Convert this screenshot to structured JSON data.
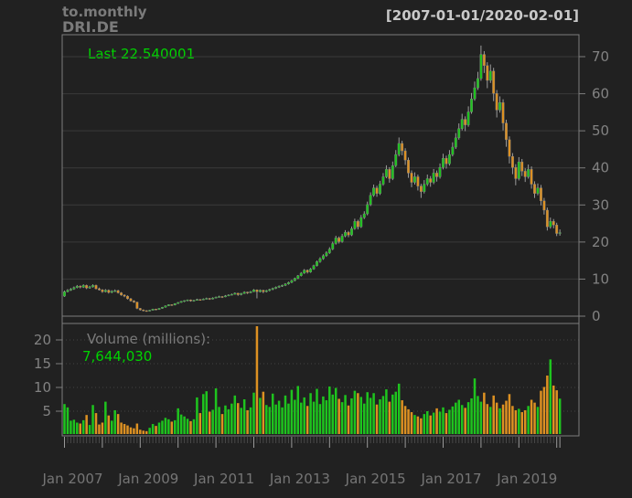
{
  "header": {
    "function_label": "to.monthly",
    "symbol": "DRI.DE",
    "range_label": "[2007-01-01/2020-02-01]"
  },
  "price_panel": {
    "last_label": "Last 22.540001"
  },
  "volume_panel": {
    "label": "Volume (millions):",
    "value": "7,644,030"
  },
  "colors": {
    "background": "#212121",
    "up": "#1ec41e",
    "down": "#dd9122",
    "wick": "#a8a8a8",
    "body_outline": "#8a8a8a",
    "grid_solid": "#3a3a3a",
    "grid_dashed": "#424242",
    "panel_border": "#7d7d7d",
    "zero_line": "#7d7d7d",
    "axis_text": "#828282",
    "x_label_text": "#757575",
    "minor_tick": "#494949",
    "major_tick": "#9a9a9a",
    "accent_green_text": "#00d300",
    "title_gray": "#7b7b7b",
    "range_white": "#c9c9c9"
  },
  "chart_data": {
    "type": "candlestick_with_volume",
    "title": "to.monthly",
    "symbol": "DRI.DE",
    "period": "monthly",
    "start": "2007-01",
    "end": "2020-02",
    "last_price": 22.540001,
    "last_volume": 7644030,
    "volume_unit": "millions",
    "price_axis": {
      "side": "right",
      "ticks": [
        0,
        10,
        20,
        30,
        40,
        50,
        60,
        70
      ],
      "ylim": [
        0,
        75
      ]
    },
    "volume_axis": {
      "side": "left",
      "ticks": [
        5,
        10,
        15,
        20
      ],
      "vlim": [
        0,
        23.5
      ]
    },
    "x_axis": {
      "labels": [
        {
          "text": "Jan 2007",
          "month_index": 0
        },
        {
          "text": "Jan 2009",
          "month_index": 24
        },
        {
          "text": "Jan 2011",
          "month_index": 48
        },
        {
          "text": "Jan 2013",
          "month_index": 72
        },
        {
          "text": "Jan 2015",
          "month_index": 96
        },
        {
          "text": "Jan 2017",
          "month_index": 120
        },
        {
          "text": "Jan 2019",
          "month_index": 144
        }
      ],
      "minor_tick_every_month": true,
      "major_tick_every_january": true
    },
    "ohlcv_columns": [
      "open",
      "high",
      "low",
      "close",
      "volume_millions"
    ],
    "ohlcv": [
      [
        5.4,
        6.9,
        5.2,
        6.6,
        6.5
      ],
      [
        6.6,
        7.3,
        6.4,
        7.0,
        5.8
      ],
      [
        7.0,
        7.6,
        6.8,
        7.3,
        3.0
      ],
      [
        7.3,
        8.0,
        7.1,
        7.7,
        3.2
      ],
      [
        7.7,
        8.4,
        7.5,
        8.1,
        2.6
      ],
      [
        8.1,
        8.3,
        7.5,
        7.8,
        2.4
      ],
      [
        7.8,
        8.6,
        7.6,
        8.3,
        3.1
      ],
      [
        8.3,
        8.5,
        7.3,
        7.6,
        4.2
      ],
      [
        7.6,
        8.2,
        7.4,
        7.9,
        2.1
      ],
      [
        7.9,
        8.6,
        7.7,
        8.3,
        6.3
      ],
      [
        8.3,
        8.5,
        7.2,
        7.4,
        4.6
      ],
      [
        7.4,
        7.7,
        6.9,
        7.1,
        2.2
      ],
      [
        7.1,
        7.3,
        6.3,
        6.6,
        2.6
      ],
      [
        6.6,
        7.3,
        6.4,
        7.0,
        7.0
      ],
      [
        7.0,
        7.2,
        6.1,
        6.4,
        4.1
      ],
      [
        6.4,
        7.0,
        6.2,
        6.7,
        3.0
      ],
      [
        6.7,
        7.2,
        6.5,
        6.9,
        5.2
      ],
      [
        6.9,
        7.1,
        6.1,
        6.3,
        4.4
      ],
      [
        6.3,
        6.5,
        5.5,
        5.7,
        2.6
      ],
      [
        5.7,
        5.9,
        5.1,
        5.4,
        2.3
      ],
      [
        5.4,
        5.6,
        4.5,
        4.7,
        2.0
      ],
      [
        4.7,
        4.9,
        3.9,
        4.1,
        1.6
      ],
      [
        4.1,
        4.3,
        3.6,
        3.8,
        1.4
      ],
      [
        3.8,
        3.9,
        1.9,
        2.1,
        2.4
      ],
      [
        2.1,
        2.2,
        1.5,
        1.7,
        1.1
      ],
      [
        1.7,
        1.8,
        1.3,
        1.5,
        0.9
      ],
      [
        1.5,
        1.6,
        1.2,
        1.4,
        0.8
      ],
      [
        1.4,
        1.7,
        1.3,
        1.6,
        1.5
      ],
      [
        1.6,
        2.0,
        1.5,
        1.9,
        2.3
      ],
      [
        1.9,
        2.0,
        1.6,
        1.8,
        1.9
      ],
      [
        1.8,
        2.2,
        1.7,
        2.1,
        2.6
      ],
      [
        2.1,
        2.5,
        2.0,
        2.4,
        3.0
      ],
      [
        2.4,
        2.9,
        2.3,
        2.8,
        3.6
      ],
      [
        2.8,
        3.2,
        2.7,
        3.1,
        3.3
      ],
      [
        3.1,
        3.2,
        2.8,
        3.0,
        2.8
      ],
      [
        3.0,
        3.5,
        2.9,
        3.4,
        3.1
      ],
      [
        3.4,
        3.8,
        3.3,
        3.7,
        5.6
      ],
      [
        3.7,
        4.1,
        3.6,
        4.0,
        4.3
      ],
      [
        4.0,
        4.3,
        3.8,
        4.2,
        3.9
      ],
      [
        4.2,
        4.5,
        4.0,
        4.4,
        3.4
      ],
      [
        4.4,
        4.5,
        3.9,
        4.1,
        2.9
      ],
      [
        4.1,
        4.4,
        3.9,
        4.3,
        3.3
      ],
      [
        4.3,
        4.7,
        4.2,
        4.5,
        7.9
      ],
      [
        4.5,
        4.6,
        4.2,
        4.4,
        4.6
      ],
      [
        4.4,
        4.8,
        4.3,
        4.6,
        8.6
      ],
      [
        4.6,
        5.0,
        4.5,
        4.8,
        9.2
      ],
      [
        4.8,
        4.9,
        4.4,
        4.6,
        4.9
      ],
      [
        4.6,
        5.1,
        4.5,
        4.9,
        5.3
      ],
      [
        4.9,
        5.3,
        4.8,
        5.1,
        9.8
      ],
      [
        5.1,
        5.5,
        5.0,
        5.3,
        5.9
      ],
      [
        5.3,
        5.4,
        4.9,
        5.2,
        4.4
      ],
      [
        5.2,
        5.7,
        5.1,
        5.5,
        6.2
      ],
      [
        5.5,
        5.9,
        5.4,
        5.7,
        5.4
      ],
      [
        5.7,
        6.1,
        5.6,
        5.9,
        6.6
      ],
      [
        5.9,
        6.4,
        5.8,
        6.2,
        8.3
      ],
      [
        6.2,
        6.3,
        5.5,
        5.8,
        6.7
      ],
      [
        5.8,
        6.3,
        5.6,
        6.1,
        5.7
      ],
      [
        6.1,
        6.7,
        6.0,
        6.5,
        7.5
      ],
      [
        6.5,
        6.6,
        6.0,
        6.3,
        5.2
      ],
      [
        6.3,
        6.8,
        6.2,
        6.6,
        5.8
      ],
      [
        6.6,
        7.3,
        6.5,
        7.1,
        8.9
      ],
      [
        7.1,
        7.2,
        4.8,
        6.6,
        22.9
      ],
      [
        6.6,
        7.2,
        6.4,
        7.0,
        7.8
      ],
      [
        7.0,
        7.1,
        6.2,
        6.6,
        9.1
      ],
      [
        6.6,
        7.1,
        6.4,
        6.9,
        6.3
      ],
      [
        6.9,
        7.4,
        6.7,
        7.2,
        5.9
      ],
      [
        7.2,
        7.7,
        7.0,
        7.5,
        8.7
      ],
      [
        7.5,
        8.0,
        7.3,
        7.8,
        6.4
      ],
      [
        7.8,
        8.3,
        7.6,
        8.1,
        7.2
      ],
      [
        8.1,
        8.5,
        7.9,
        8.3,
        5.8
      ],
      [
        8.3,
        8.9,
        8.1,
        8.7,
        8.3
      ],
      [
        8.7,
        9.3,
        8.5,
        9.1,
        6.6
      ],
      [
        9.1,
        9.8,
        8.9,
        9.6,
        9.5
      ],
      [
        9.6,
        10.4,
        9.4,
        10.2,
        7.4
      ],
      [
        10.2,
        11.1,
        10.0,
        10.9,
        10.3
      ],
      [
        10.9,
        11.9,
        10.7,
        11.6,
        6.8
      ],
      [
        11.6,
        12.7,
        11.4,
        12.4,
        7.9
      ],
      [
        12.4,
        12.6,
        11.5,
        11.9,
        6.1
      ],
      [
        11.9,
        13.0,
        11.7,
        12.7,
        8.8
      ],
      [
        12.7,
        13.9,
        12.5,
        13.6,
        7.0
      ],
      [
        13.6,
        15.0,
        13.4,
        14.7,
        9.7
      ],
      [
        14.7,
        15.9,
        14.4,
        15.5,
        6.5
      ],
      [
        15.5,
        16.7,
        15.2,
        16.3,
        8.1
      ],
      [
        16.3,
        17.5,
        16.0,
        17.1,
        7.3
      ],
      [
        17.1,
        18.6,
        16.8,
        18.1,
        10.2
      ],
      [
        18.1,
        20.1,
        17.8,
        19.6,
        8.5
      ],
      [
        19.6,
        21.7,
        19.3,
        21.1,
        9.9
      ],
      [
        21.1,
        21.5,
        19.6,
        20.1,
        7.6
      ],
      [
        20.1,
        22.2,
        19.8,
        21.6,
        6.9
      ],
      [
        21.6,
        23.2,
        21.3,
        22.6,
        8.4
      ],
      [
        22.6,
        23.0,
        21.3,
        21.9,
        6.2
      ],
      [
        21.9,
        24.2,
        21.6,
        23.6,
        7.7
      ],
      [
        23.6,
        26.3,
        23.3,
        25.6,
        9.3
      ],
      [
        25.6,
        26.0,
        23.4,
        24.1,
        8.8
      ],
      [
        24.1,
        27.3,
        23.8,
        26.6,
        8.0
      ],
      [
        26.6,
        28.3,
        26.2,
        27.6,
        6.6
      ],
      [
        27.6,
        30.9,
        27.2,
        30.1,
        9.0
      ],
      [
        30.1,
        33.4,
        29.7,
        32.6,
        7.8
      ],
      [
        32.6,
        35.5,
        32.2,
        34.6,
        8.8
      ],
      [
        34.6,
        35.2,
        32.2,
        33.1,
        6.4
      ],
      [
        33.1,
        36.5,
        32.7,
        35.6,
        7.5
      ],
      [
        35.6,
        38.6,
        35.2,
        37.6,
        8.2
      ],
      [
        37.6,
        40.7,
        37.2,
        39.6,
        9.6
      ],
      [
        39.6,
        40.2,
        36.0,
        37.1,
        7.0
      ],
      [
        37.1,
        41.7,
        36.7,
        40.6,
        8.5
      ],
      [
        40.6,
        44.8,
        40.2,
        43.6,
        9.1
      ],
      [
        43.6,
        48.2,
        43.1,
        46.6,
        10.8
      ],
      [
        46.6,
        47.3,
        43.4,
        44.6,
        7.3
      ],
      [
        44.6,
        45.3,
        40.8,
        42.1,
        6.1
      ],
      [
        42.1,
        42.8,
        37.3,
        38.6,
        5.4
      ],
      [
        38.6,
        39.3,
        34.8,
        36.1,
        4.8
      ],
      [
        36.1,
        38.8,
        35.5,
        37.6,
        4.2
      ],
      [
        37.6,
        38.2,
        33.9,
        35.1,
        3.9
      ],
      [
        35.1,
        35.7,
        31.9,
        33.6,
        3.5
      ],
      [
        33.6,
        36.7,
        33.1,
        35.6,
        4.4
      ],
      [
        35.6,
        38.2,
        35.1,
        37.1,
        5.0
      ],
      [
        37.1,
        37.8,
        34.9,
        36.1,
        4.1
      ],
      [
        36.1,
        39.7,
        35.6,
        38.6,
        4.7
      ],
      [
        38.6,
        39.3,
        36.3,
        37.6,
        5.6
      ],
      [
        37.6,
        41.2,
        37.1,
        40.1,
        4.9
      ],
      [
        40.1,
        43.8,
        39.6,
        42.6,
        5.8
      ],
      [
        42.6,
        43.3,
        39.8,
        41.1,
        4.6
      ],
      [
        41.1,
        44.8,
        40.6,
        43.6,
        5.3
      ],
      [
        43.6,
        46.9,
        43.1,
        45.6,
        6.0
      ],
      [
        45.6,
        49.4,
        45.1,
        48.1,
        6.8
      ],
      [
        48.1,
        52.0,
        47.6,
        50.6,
        7.4
      ],
      [
        50.6,
        54.6,
        50.1,
        53.1,
        6.3
      ],
      [
        53.1,
        53.9,
        49.9,
        51.6,
        5.7
      ],
      [
        51.6,
        56.6,
        51.1,
        55.1,
        6.9
      ],
      [
        55.1,
        60.2,
        54.6,
        58.6,
        7.7
      ],
      [
        58.6,
        63.3,
        58.1,
        61.6,
        11.9
      ],
      [
        61.6,
        65.9,
        61.0,
        64.1,
        8.2
      ],
      [
        64.1,
        73.0,
        63.5,
        70.6,
        7.0
      ],
      [
        70.6,
        71.5,
        65.6,
        67.6,
        8.9
      ],
      [
        67.6,
        68.5,
        61.5,
        63.6,
        6.5
      ],
      [
        63.6,
        67.9,
        62.9,
        66.1,
        5.9
      ],
      [
        66.1,
        67.0,
        58.0,
        60.1,
        8.3
      ],
      [
        60.1,
        61.0,
        53.6,
        55.6,
        6.8
      ],
      [
        55.6,
        59.3,
        54.9,
        57.6,
        5.6
      ],
      [
        57.6,
        58.5,
        50.1,
        52.1,
        6.4
      ],
      [
        52.1,
        53.0,
        45.7,
        47.6,
        7.2
      ],
      [
        47.6,
        48.5,
        41.2,
        43.1,
        8.6
      ],
      [
        43.1,
        44.0,
        38.3,
        40.1,
        6.1
      ],
      [
        40.1,
        41.0,
        35.3,
        37.1,
        5.2
      ],
      [
        37.1,
        42.9,
        36.6,
        41.6,
        5.5
      ],
      [
        41.6,
        42.4,
        37.8,
        39.1,
        4.8
      ],
      [
        39.1,
        39.9,
        36.2,
        37.6,
        5.2
      ],
      [
        37.6,
        40.9,
        37.1,
        39.6,
        6.1
      ],
      [
        39.6,
        40.4,
        34.4,
        35.6,
        7.4
      ],
      [
        35.6,
        36.4,
        31.9,
        33.1,
        6.8
      ],
      [
        33.1,
        35.8,
        32.6,
        34.6,
        5.9
      ],
      [
        34.6,
        35.4,
        29.9,
        31.1,
        9.3
      ],
      [
        31.1,
        31.9,
        27.4,
        28.6,
        10.1
      ],
      [
        28.6,
        29.3,
        23.1,
        24.1,
        12.5
      ],
      [
        24.1,
        26.6,
        23.6,
        25.6,
        15.9
      ],
      [
        25.6,
        26.2,
        23.7,
        24.6,
        10.4
      ],
      [
        24.6,
        25.2,
        21.6,
        22.3,
        9.4
      ],
      [
        22.3,
        23.4,
        21.7,
        22.540001,
        7.64403
      ]
    ]
  }
}
